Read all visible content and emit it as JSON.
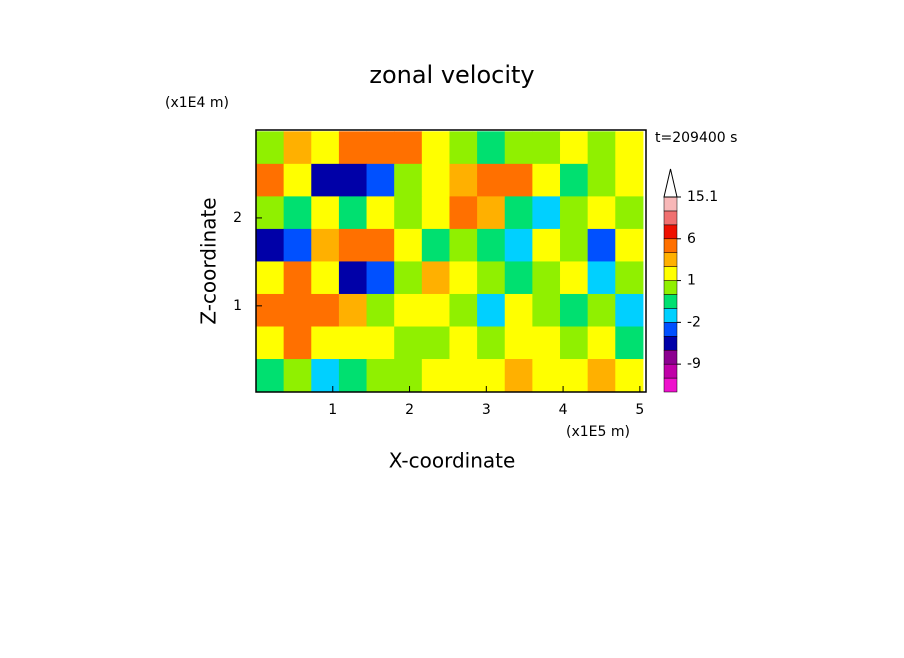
{
  "chart_data": {
    "type": "contour",
    "title": "zonal velocity",
    "x_label": "X-coordinate",
    "y_label": "Z-coordinate",
    "x_unit": "(x1E5 m)",
    "y_unit": "(x1E4 m)",
    "time_label": "t=209400 s",
    "xlim": [
      0,
      5.08
    ],
    "ylim": [
      0.02,
      3.0
    ],
    "xticks": [
      1,
      2,
      3,
      4,
      5
    ],
    "yticks": [
      1,
      2
    ],
    "x": [
      0.18,
      0.54,
      0.9,
      1.26,
      1.62,
      1.98,
      2.34,
      2.7,
      3.06,
      3.42,
      3.78,
      4.14,
      4.5,
      4.86
    ],
    "z": [
      2.8,
      2.43,
      2.06,
      1.69,
      1.32,
      0.95,
      0.58,
      0.21
    ],
    "values": [
      [
        0.5,
        2,
        1,
        4,
        5,
        3,
        1,
        0.5,
        -1,
        0.5,
        0.5,
        1,
        0.5,
        1
      ],
      [
        4,
        1,
        -4,
        -4,
        -3,
        0.5,
        1,
        2,
        4,
        5,
        1,
        -1,
        0.5,
        1
      ],
      [
        0.5,
        -1,
        1.5,
        -1,
        1,
        0.5,
        1.5,
        3,
        2,
        -1,
        -2,
        0.5,
        1.5,
        0.5
      ],
      [
        -5,
        -3,
        2,
        4,
        3,
        1,
        -1,
        0.5,
        -1,
        -2,
        1,
        0.5,
        -3,
        1
      ],
      [
        1.5,
        4,
        1,
        -4,
        -3,
        0.5,
        2,
        1,
        0.5,
        -1,
        0.5,
        1.5,
        -2,
        0.5
      ],
      [
        3,
        5,
        4,
        2,
        0.5,
        1,
        1.5,
        0.5,
        -2,
        1,
        0.5,
        -1,
        0.5,
        -2
      ],
      [
        1,
        4,
        1,
        1.5,
        1,
        0.5,
        0.5,
        1,
        0.5,
        1.5,
        1,
        0.5,
        1.5,
        -1
      ],
      [
        -1,
        0.5,
        -2,
        -1,
        0.5,
        0.5,
        1.5,
        1,
        1.5,
        2,
        1.5,
        1,
        2,
        1.5
      ]
    ],
    "levels": [
      -15,
      -12,
      -9,
      -6,
      -3,
      -2,
      -1,
      0,
      1,
      2,
      3,
      6,
      9,
      12,
      15.1
    ],
    "colors": [
      "#ee11cc",
      "#c000a8",
      "#8c0090",
      "#0000a8",
      "#0050ff",
      "#00d0ff",
      "#00e070",
      "#90f000",
      "#ffff00",
      "#ffb000",
      "#ff7000",
      "#ee1000",
      "#f07070",
      "#f8b8b8"
    ],
    "cbticks": [
      15.1,
      6,
      1,
      -2,
      -9
    ]
  }
}
